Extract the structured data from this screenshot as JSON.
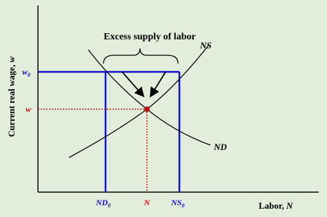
{
  "title_annotation": "Excess supply of labor",
  "curves": {
    "supply": "NS",
    "demand": "ND"
  },
  "y_axis": {
    "title": "Current real wage, ",
    "title_var": "w",
    "wage_high": {
      "base": "w",
      "sub": "0"
    },
    "wage_eq": "w"
  },
  "x_axis": {
    "title": "Labor, ",
    "title_var": "N",
    "demand_at_w0": {
      "base": "ND",
      "sub": "0"
    },
    "equilibrium": "N",
    "supply_at_w0": {
      "base": "NS",
      "sub": "0"
    }
  }
}
